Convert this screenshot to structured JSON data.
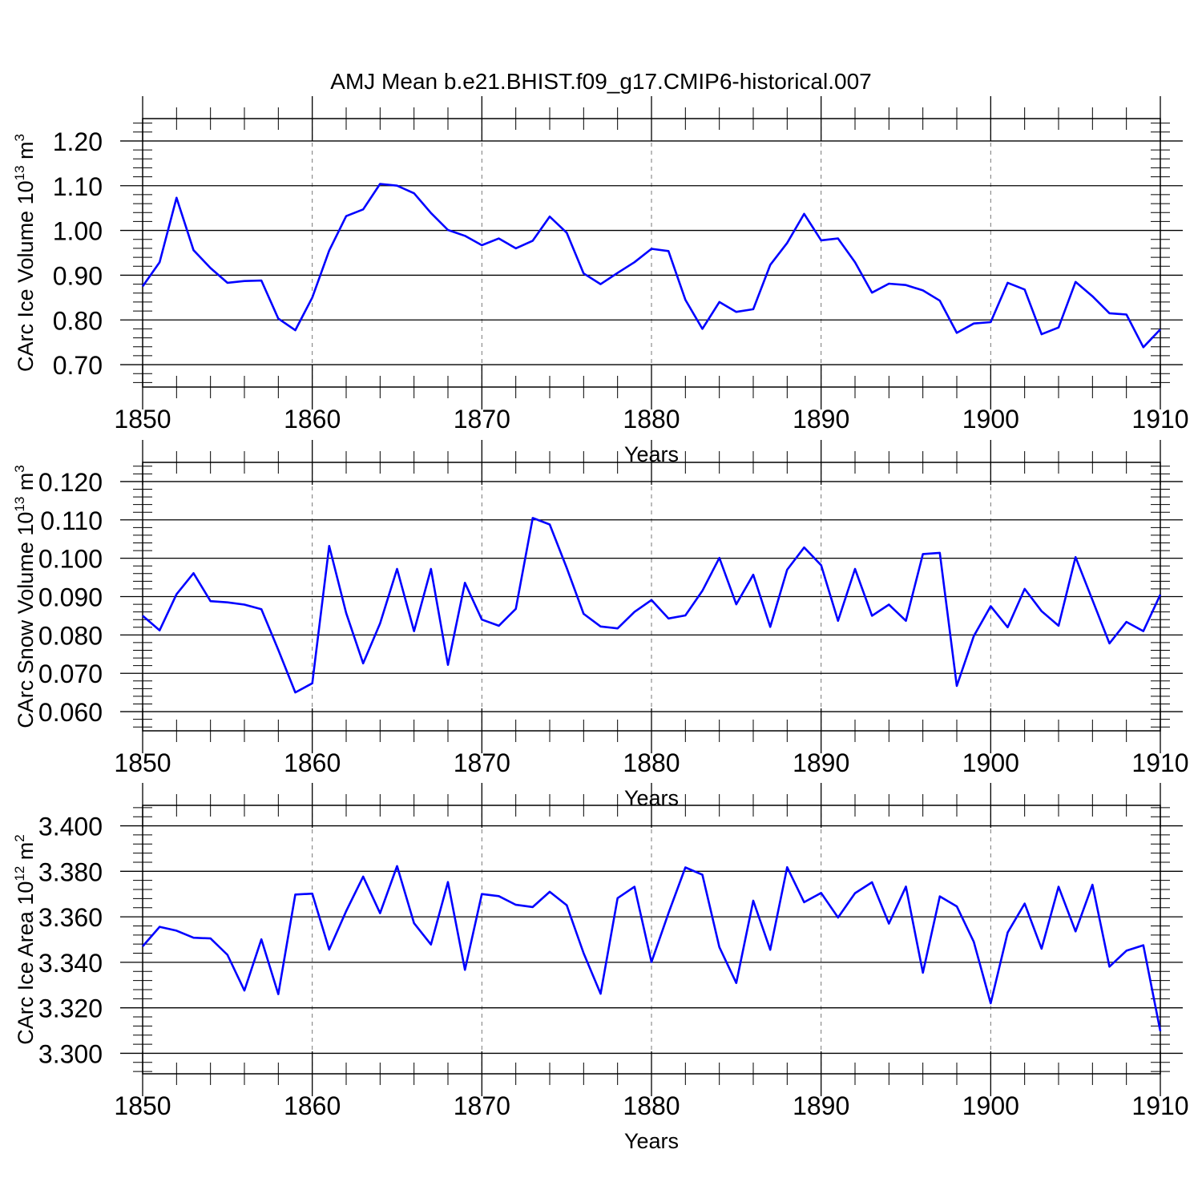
{
  "title": "AMJ Mean b.e21.BHIST.f09_g17.CMIP6-historical.007",
  "colors": {
    "line": "#0000ff",
    "axis": "#000000",
    "grid": "#777777"
  },
  "chart_data": [
    {
      "type": "line",
      "xlabel": "Years",
      "ylabel": {
        "main": "CArc Ice Volume 10",
        "sup": "13",
        "unit": " m",
        "unit_sup": "3"
      },
      "xlim": [
        1850,
        1910
      ],
      "ylim": [
        0.65,
        1.25
      ],
      "x_ticks": [
        1850,
        1860,
        1870,
        1880,
        1890,
        1900,
        1910
      ],
      "x_tick_labels": [
        "1850",
        "1860",
        "1870",
        "1880",
        "1890",
        "1900",
        "1910"
      ],
      "y_ticks": [
        0.7,
        0.8,
        0.9,
        1.0,
        1.1,
        1.2
      ],
      "y_tick_labels": [
        "0.70",
        "0.80",
        "0.90",
        "1.00",
        "1.10",
        "1.20"
      ],
      "grid": "vertical-dashed",
      "series": [
        {
          "x_start": 1850,
          "values": [
            0.875,
            0.929,
            1.073,
            0.956,
            0.916,
            0.883,
            0.887,
            0.888,
            0.803,
            0.777,
            0.85,
            0.955,
            1.032,
            1.047,
            1.104,
            1.1,
            1.083,
            1.039,
            1.001,
            0.988,
            0.967,
            0.982,
            0.96,
            0.977,
            1.031,
            0.995,
            0.904,
            0.88,
            0.905,
            0.929,
            0.959,
            0.954,
            0.845,
            0.78,
            0.84,
            0.818,
            0.824,
            0.923,
            0.972,
            1.037,
            0.978,
            0.982,
            0.929,
            0.861,
            0.881,
            0.878,
            0.866,
            0.843,
            0.771,
            0.792,
            0.795,
            0.883,
            0.868,
            0.768,
            0.783,
            0.885,
            0.853,
            0.815,
            0.812,
            0.739,
            0.779
          ]
        }
      ]
    },
    {
      "type": "line",
      "xlabel": "Years",
      "ylabel": {
        "main": "CArc Snow Volume 10",
        "sup": "13",
        "unit": " m",
        "unit_sup": "3"
      },
      "xlim": [
        1850,
        1910
      ],
      "ylim": [
        0.055,
        0.125
      ],
      "x_ticks": [
        1850,
        1860,
        1870,
        1880,
        1890,
        1900,
        1910
      ],
      "x_tick_labels": [
        "1850",
        "1860",
        "1870",
        "1880",
        "1890",
        "1900",
        "1910"
      ],
      "y_ticks": [
        0.06,
        0.07,
        0.08,
        0.09,
        0.1,
        0.11,
        0.12
      ],
      "y_tick_labels": [
        "0.060",
        "0.070",
        "0.080",
        "0.090",
        "0.100",
        "0.110",
        "0.120"
      ],
      "grid": "vertical-dashed",
      "series": [
        {
          "x_start": 1850,
          "values": [
            0.085,
            0.0812,
            0.0906,
            0.0961,
            0.0888,
            0.0885,
            0.0879,
            0.0867,
            0.0761,
            0.065,
            0.0674,
            0.1032,
            0.0857,
            0.0726,
            0.083,
            0.0972,
            0.081,
            0.0972,
            0.0722,
            0.0936,
            0.084,
            0.0824,
            0.0868,
            0.1105,
            0.1088,
            0.0975,
            0.0855,
            0.0822,
            0.0817,
            0.086,
            0.0891,
            0.0843,
            0.0851,
            0.0915,
            0.1001,
            0.088,
            0.0957,
            0.0821,
            0.097,
            0.1028,
            0.0982,
            0.0837,
            0.0972,
            0.085,
            0.0879,
            0.0837,
            0.1011,
            0.1014,
            0.0667,
            0.0797,
            0.0875,
            0.082,
            0.092,
            0.0862,
            0.0824,
            0.1003,
            0.0891,
            0.0778,
            0.0834,
            0.081,
            0.0905
          ]
        }
      ]
    },
    {
      "type": "line",
      "xlabel": "Years",
      "ylabel": {
        "main": "CArc Ice Area 10",
        "sup": "12",
        "unit": " m",
        "unit_sup": "2"
      },
      "xlim": [
        1850,
        1910
      ],
      "ylim": [
        3.291,
        3.409
      ],
      "x_ticks": [
        1850,
        1860,
        1870,
        1880,
        1890,
        1900,
        1910
      ],
      "x_tick_labels": [
        "1850",
        "1860",
        "1870",
        "1880",
        "1890",
        "1900",
        "1910"
      ],
      "y_ticks": [
        3.3,
        3.32,
        3.34,
        3.36,
        3.38,
        3.4
      ],
      "y_tick_labels": [
        "3.300",
        "3.320",
        "3.340",
        "3.360",
        "3.380",
        "3.400"
      ],
      "grid": "vertical-dashed",
      "series": [
        {
          "x_start": 1850,
          "values": [
            3.347,
            3.3556,
            3.3539,
            3.3508,
            3.3505,
            3.3433,
            3.3276,
            3.3501,
            3.326,
            3.3698,
            3.3702,
            3.3456,
            3.3625,
            3.3777,
            3.3616,
            3.3823,
            3.3572,
            3.3478,
            3.3753,
            3.3367,
            3.37,
            3.3691,
            3.3653,
            3.3643,
            3.371,
            3.3651,
            3.344,
            3.3262,
            3.3682,
            3.3732,
            3.3401,
            3.3616,
            3.3817,
            3.3785,
            3.3467,
            3.3309,
            3.3671,
            3.3455,
            3.3818,
            3.3664,
            3.3705,
            3.3597,
            3.3704,
            3.3752,
            3.357,
            3.3733,
            3.3354,
            3.369,
            3.3646,
            3.349,
            3.322,
            3.3531,
            3.3658,
            3.346,
            3.3732,
            3.3536,
            3.3741,
            3.3381,
            3.3451,
            3.3475,
            3.3097
          ]
        }
      ]
    }
  ]
}
